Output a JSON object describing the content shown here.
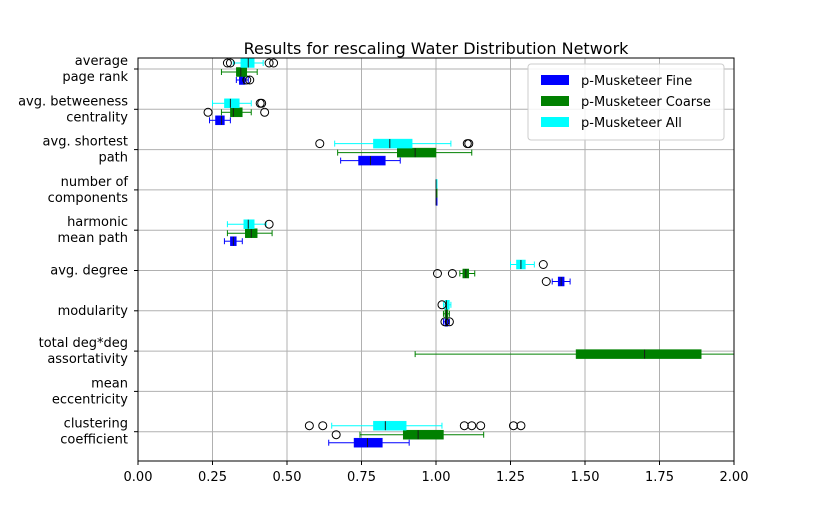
{
  "chart_data": {
    "type": "boxplot-horizontal",
    "title": "Results for rescaling Water Distribution Network",
    "xlabel": "",
    "ylabel": "",
    "xlim": [
      0.0,
      2.0
    ],
    "xticks": [
      "0.00",
      "0.25",
      "0.50",
      "0.75",
      "1.00",
      "1.25",
      "1.50",
      "1.75",
      "2.00"
    ],
    "grid": true,
    "legend_position": "top-right",
    "series": [
      {
        "name": "p-Musketeer Fine",
        "color": "#0000ff"
      },
      {
        "name": "p-Musketeer Coarse",
        "color": "#008000"
      },
      {
        "name": "p-Musketeer All",
        "color": "#00ffff"
      }
    ],
    "categories": [
      {
        "label": [
          "average",
          "page rank"
        ],
        "boxes": [
          {
            "series": 0,
            "wlo": 0.33,
            "q1": 0.34,
            "med": 0.355,
            "q3": 0.36,
            "whi": 0.37,
            "fliers": [
              0.365,
              0.375
            ]
          },
          {
            "series": 1,
            "wlo": 0.28,
            "q1": 0.33,
            "med": 0.345,
            "q3": 0.365,
            "whi": 0.4,
            "fliers": []
          },
          {
            "series": 2,
            "wlo": 0.32,
            "q1": 0.345,
            "med": 0.37,
            "q3": 0.39,
            "whi": 0.42,
            "fliers": [
              0.3,
              0.31,
              0.44,
              0.455
            ]
          }
        ]
      },
      {
        "label": [
          "avg. betweeness",
          "centrality"
        ],
        "boxes": [
          {
            "series": 0,
            "wlo": 0.24,
            "q1": 0.26,
            "med": 0.28,
            "q3": 0.29,
            "whi": 0.31,
            "fliers": []
          },
          {
            "series": 1,
            "wlo": 0.28,
            "q1": 0.31,
            "med": 0.32,
            "q3": 0.35,
            "whi": 0.38,
            "fliers": [
              0.235,
              0.425
            ]
          },
          {
            "series": 2,
            "wlo": 0.25,
            "q1": 0.29,
            "med": 0.31,
            "q3": 0.34,
            "whi": 0.38,
            "fliers": [
              0.41,
              0.415
            ]
          }
        ]
      },
      {
        "label": [
          "avg. shortest",
          "path"
        ],
        "boxes": [
          {
            "series": 0,
            "wlo": 0.68,
            "q1": 0.74,
            "med": 0.78,
            "q3": 0.83,
            "whi": 0.88,
            "fliers": []
          },
          {
            "series": 1,
            "wlo": 0.67,
            "q1": 0.87,
            "med": 0.93,
            "q3": 1.0,
            "whi": 1.12,
            "fliers": []
          },
          {
            "series": 2,
            "wlo": 0.66,
            "q1": 0.79,
            "med": 0.845,
            "q3": 0.92,
            "whi": 1.05,
            "fliers": [
              0.61,
              1.105,
              1.11
            ]
          }
        ]
      },
      {
        "label": [
          "number of",
          "components"
        ],
        "boxes": [
          {
            "series": 0,
            "wlo": 1.0,
            "q1": 1.0,
            "med": 1.0,
            "q3": 1.0,
            "whi": 1.0,
            "fliers": []
          },
          {
            "series": 1,
            "wlo": 1.0,
            "q1": 1.0,
            "med": 1.0,
            "q3": 1.0,
            "whi": 1.0,
            "fliers": []
          },
          {
            "series": 2,
            "wlo": 1.0,
            "q1": 1.0,
            "med": 1.0,
            "q3": 1.0,
            "whi": 1.0,
            "fliers": []
          }
        ]
      },
      {
        "label": [
          "harmonic",
          "mean path"
        ],
        "boxes": [
          {
            "series": 0,
            "wlo": 0.29,
            "q1": 0.31,
            "med": 0.32,
            "q3": 0.33,
            "whi": 0.35,
            "fliers": []
          },
          {
            "series": 1,
            "wlo": 0.3,
            "q1": 0.36,
            "med": 0.38,
            "q3": 0.4,
            "whi": 0.45,
            "fliers": []
          },
          {
            "series": 2,
            "wlo": 0.3,
            "q1": 0.355,
            "med": 0.37,
            "q3": 0.39,
            "whi": 0.43,
            "fliers": [
              0.44
            ]
          }
        ]
      },
      {
        "label": [
          "avg. degree"
        ],
        "boxes": [
          {
            "series": 0,
            "wlo": 1.39,
            "q1": 1.41,
            "med": 1.42,
            "q3": 1.43,
            "whi": 1.45,
            "fliers": [
              1.37
            ]
          },
          {
            "series": 1,
            "wlo": 1.08,
            "q1": 1.09,
            "med": 1.1,
            "q3": 1.11,
            "whi": 1.13,
            "fliers": [
              1.005,
              1.055
            ]
          },
          {
            "series": 2,
            "wlo": 1.25,
            "q1": 1.27,
            "med": 1.285,
            "q3": 1.3,
            "whi": 1.33,
            "fliers": [
              1.36
            ]
          }
        ]
      },
      {
        "label": [
          "modularity"
        ],
        "boxes": [
          {
            "series": 0,
            "wlo": 1.025,
            "q1": 1.03,
            "med": 1.035,
            "q3": 1.04,
            "whi": 1.045,
            "fliers": [
              1.03,
              1.045
            ]
          },
          {
            "series": 1,
            "wlo": 1.025,
            "q1": 1.03,
            "med": 1.035,
            "q3": 1.04,
            "whi": 1.045,
            "fliers": []
          },
          {
            "series": 2,
            "wlo": 1.025,
            "q1": 1.03,
            "med": 1.035,
            "q3": 1.045,
            "whi": 1.05,
            "fliers": [
              1.02
            ]
          }
        ]
      },
      {
        "label": [
          "total deg*deg",
          "assortativity"
        ],
        "boxes": [
          {
            "series": 1,
            "wlo": 0.93,
            "q1": 1.47,
            "med": 1.7,
            "q3": 1.89,
            "whi": 2.0,
            "fliers": []
          }
        ]
      },
      {
        "label": [
          "mean",
          "eccentricity"
        ],
        "boxes": []
      },
      {
        "label": [
          "clustering",
          "coefficient"
        ],
        "boxes": [
          {
            "series": 0,
            "wlo": 0.64,
            "q1": 0.725,
            "med": 0.77,
            "q3": 0.82,
            "whi": 0.91,
            "fliers": []
          },
          {
            "series": 1,
            "wlo": 0.745,
            "q1": 0.89,
            "med": 0.94,
            "q3": 1.025,
            "whi": 1.16,
            "fliers": [
              0.665
            ]
          },
          {
            "series": 2,
            "wlo": 0.65,
            "q1": 0.79,
            "med": 0.83,
            "q3": 0.9,
            "whi": 1.02,
            "fliers": [
              0.575,
              0.62,
              1.095,
              1.12,
              1.15,
              1.26,
              1.285
            ]
          }
        ]
      }
    ]
  }
}
